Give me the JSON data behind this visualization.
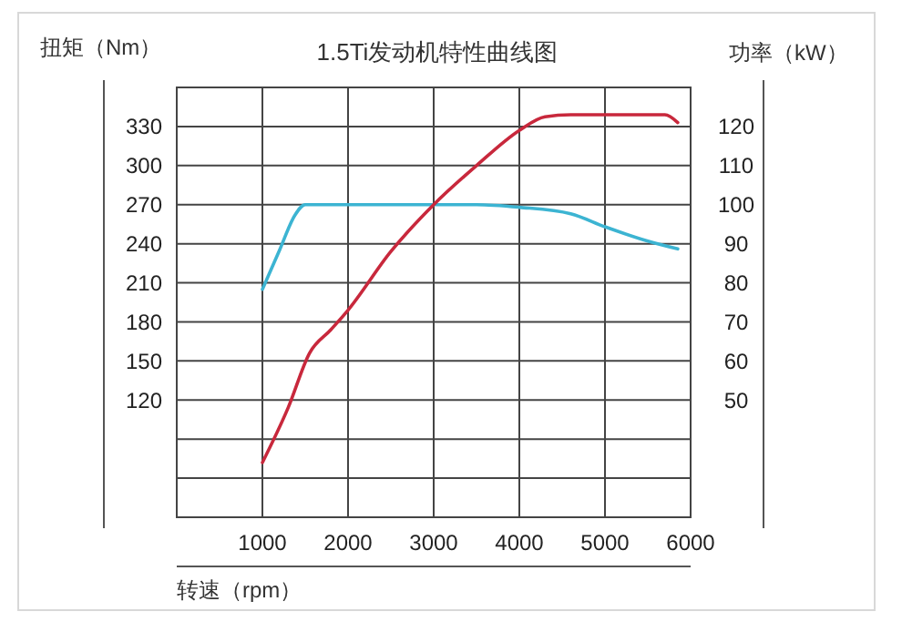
{
  "chart_data": {
    "type": "line",
    "title": "1.5Ti发动机特性曲线图",
    "xlabel": "转速（rpm）",
    "ylabel": "扭矩（Nm）",
    "y2label": "功率（kW）",
    "xlim": [
      0,
      6000
    ],
    "xticks": [
      {
        "value": 0,
        "label": null
      },
      1000,
      2000,
      3000,
      4000,
      5000,
      6000
    ],
    "ylim": [
      30,
      360
    ],
    "yticks": [
      {
        "value": 30,
        "label": null
      },
      {
        "value": 60,
        "label": null
      },
      {
        "value": 90,
        "label": null
      },
      120,
      150,
      180,
      210,
      240,
      270,
      300,
      330,
      {
        "value": 360,
        "label": null
      }
    ],
    "y2lim": [
      20,
      130
    ],
    "y2ticks": [
      50,
      60,
      70,
      80,
      90,
      100,
      110,
      120
    ],
    "grid": true,
    "marker": "none",
    "line_style": "solid",
    "series": [
      {
        "color": "#3cb4d2",
        "x": [
          1000,
          1200,
          1380,
          1500,
          2000,
          3000,
          3500,
          4000,
          4600,
          5000,
          5500,
          5850
        ],
        "values": [
          205,
          235,
          262,
          270,
          270,
          270,
          270,
          268,
          263,
          253,
          242,
          236
        ]
      },
      {
        "color": "#c8283c",
        "axis": "y2",
        "x": [
          1000,
          1300,
          1550,
          1800,
          2000,
          2500,
          3000,
          3500,
          4000,
          4300,
          4600,
          5000,
          5700,
          5850
        ],
        "values": [
          34,
          48,
          62,
          68,
          73,
          88,
          100,
          110,
          119,
          122.5,
          123,
          123,
          123,
          121
        ]
      }
    ]
  }
}
